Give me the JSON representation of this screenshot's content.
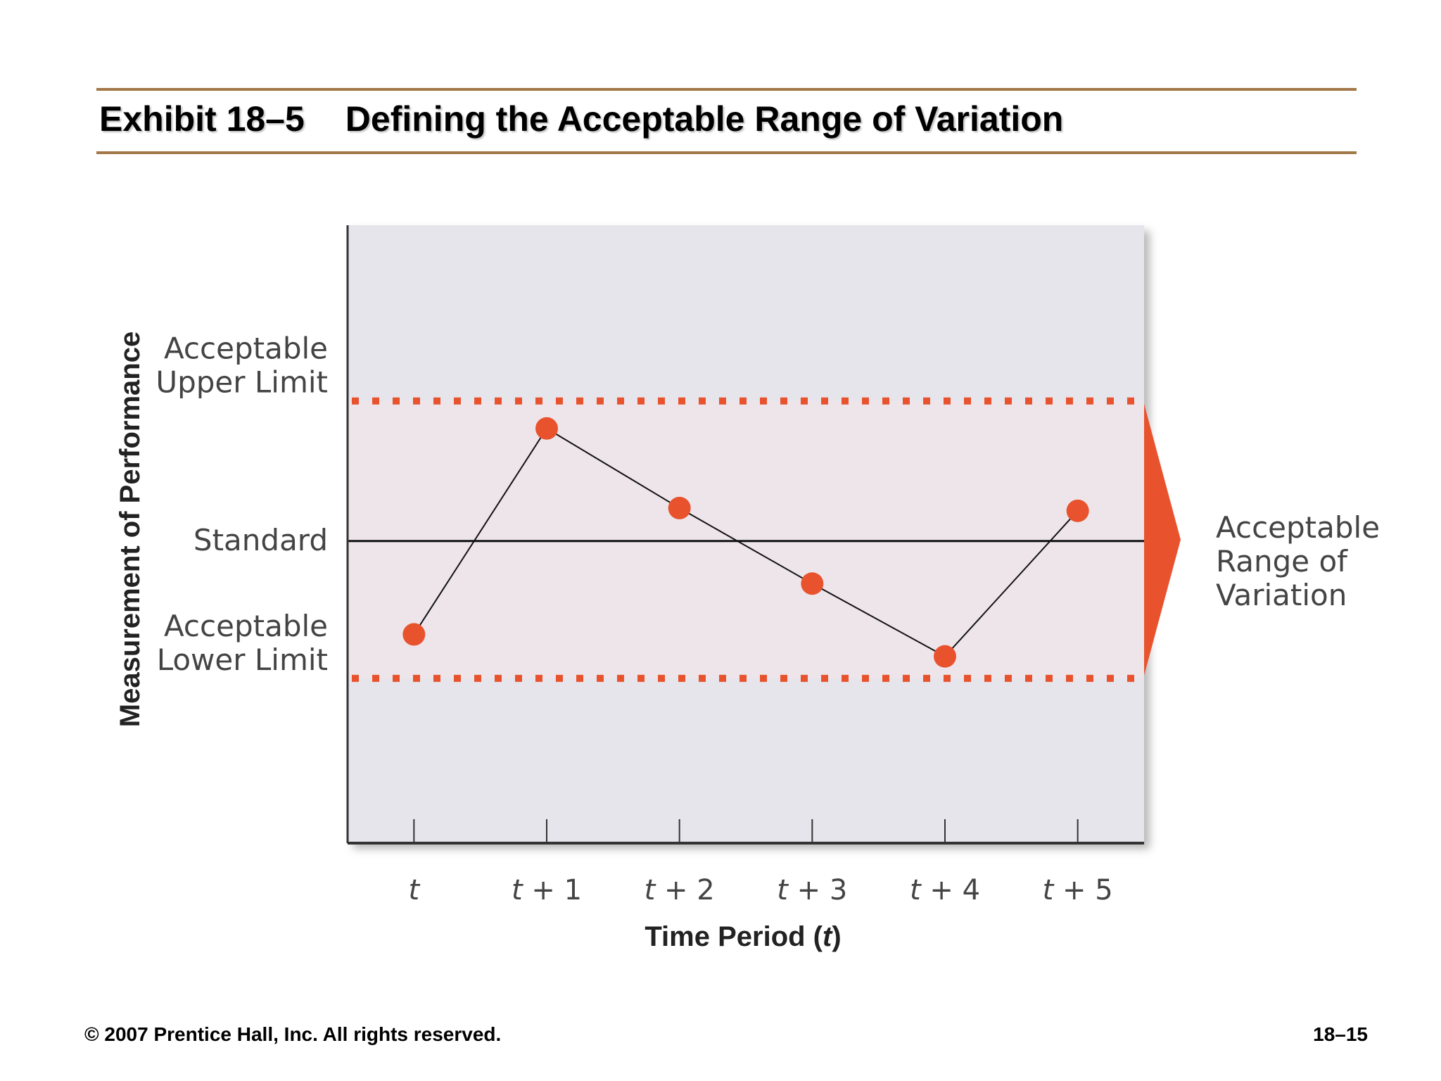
{
  "slide": {
    "exhibit_number": "Exhibit 18–5",
    "title": "Defining the Acceptable Range of Variation",
    "copyright": "© 2007 Prentice Hall, Inc. All rights reserved.",
    "page_number": "18–15"
  },
  "colors": {
    "accent": "#e8532e",
    "rule": "#a37848",
    "plot_bg": "#e6e5ec",
    "band_bg": "#f0e5ea"
  },
  "chart_data": {
    "type": "line",
    "xlabel": "Time Period (t)",
    "xlabel_main": "Time Period (",
    "xlabel_var": "t",
    "xlabel_close": ")",
    "ylabel": "Measurement of Performance",
    "categories": [
      {
        "var": "t",
        "suffix": ""
      },
      {
        "var": "t",
        "suffix": " + 1"
      },
      {
        "var": "t",
        "suffix": " + 2"
      },
      {
        "var": "t",
        "suffix": " + 3"
      },
      {
        "var": "t",
        "suffix": " + 4"
      },
      {
        "var": "t",
        "suffix": " + 5"
      }
    ],
    "values": [
      -0.68,
      0.82,
      0.24,
      -0.31,
      -0.84,
      0.22
    ],
    "ylim": [
      -2.2,
      2.3
    ],
    "reference_lines": {
      "upper": {
        "value": 1.02,
        "label_lines": [
          "Acceptable",
          "Upper Limit"
        ],
        "style": "dotted"
      },
      "standard": {
        "value": 0,
        "label_lines": [
          "Standard"
        ],
        "style": "solid"
      },
      "lower": {
        "value": -1.0,
        "label_lines": [
          "Acceptable",
          "Lower Limit"
        ],
        "style": "dotted"
      }
    },
    "range_annotation": {
      "label_lines": [
        "Acceptable",
        "Range of",
        "Variation"
      ]
    },
    "grid": false,
    "legend": "none"
  }
}
